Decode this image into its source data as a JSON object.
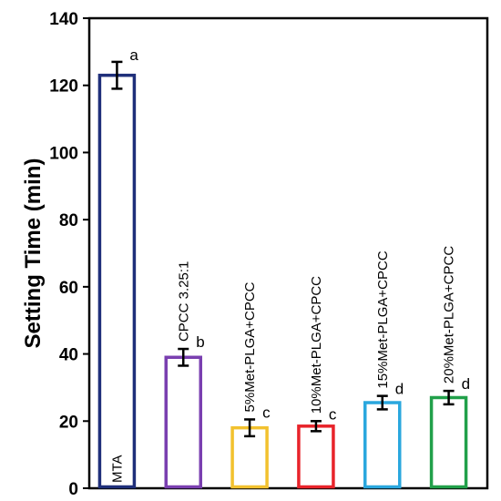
{
  "chart_data": {
    "type": "bar",
    "ylabel": "Setting Time (min)",
    "ylim": [
      0,
      140
    ],
    "yticks": [
      0,
      20,
      40,
      60,
      80,
      100,
      120,
      140
    ],
    "grid": false,
    "categories": [
      "MTA",
      "CPCC 3.25:1",
      "5%Met-PLGA+CPCC",
      "10%Met-PLGA+CPCC",
      "15%Met-PLGA+CPCC",
      "20%Met-PLGA+CPCC"
    ],
    "values": [
      123,
      39,
      18,
      18.5,
      25.5,
      27
    ],
    "errors": [
      4,
      2.5,
      2.5,
      1.5,
      2,
      2
    ],
    "significance": [
      "a",
      "b",
      "c",
      "c",
      "d",
      "d"
    ],
    "colors": [
      "#1f2f7a",
      "#7a3fb0",
      "#f2c12e",
      "#e8232a",
      "#2aa7de",
      "#21a04a"
    ]
  }
}
